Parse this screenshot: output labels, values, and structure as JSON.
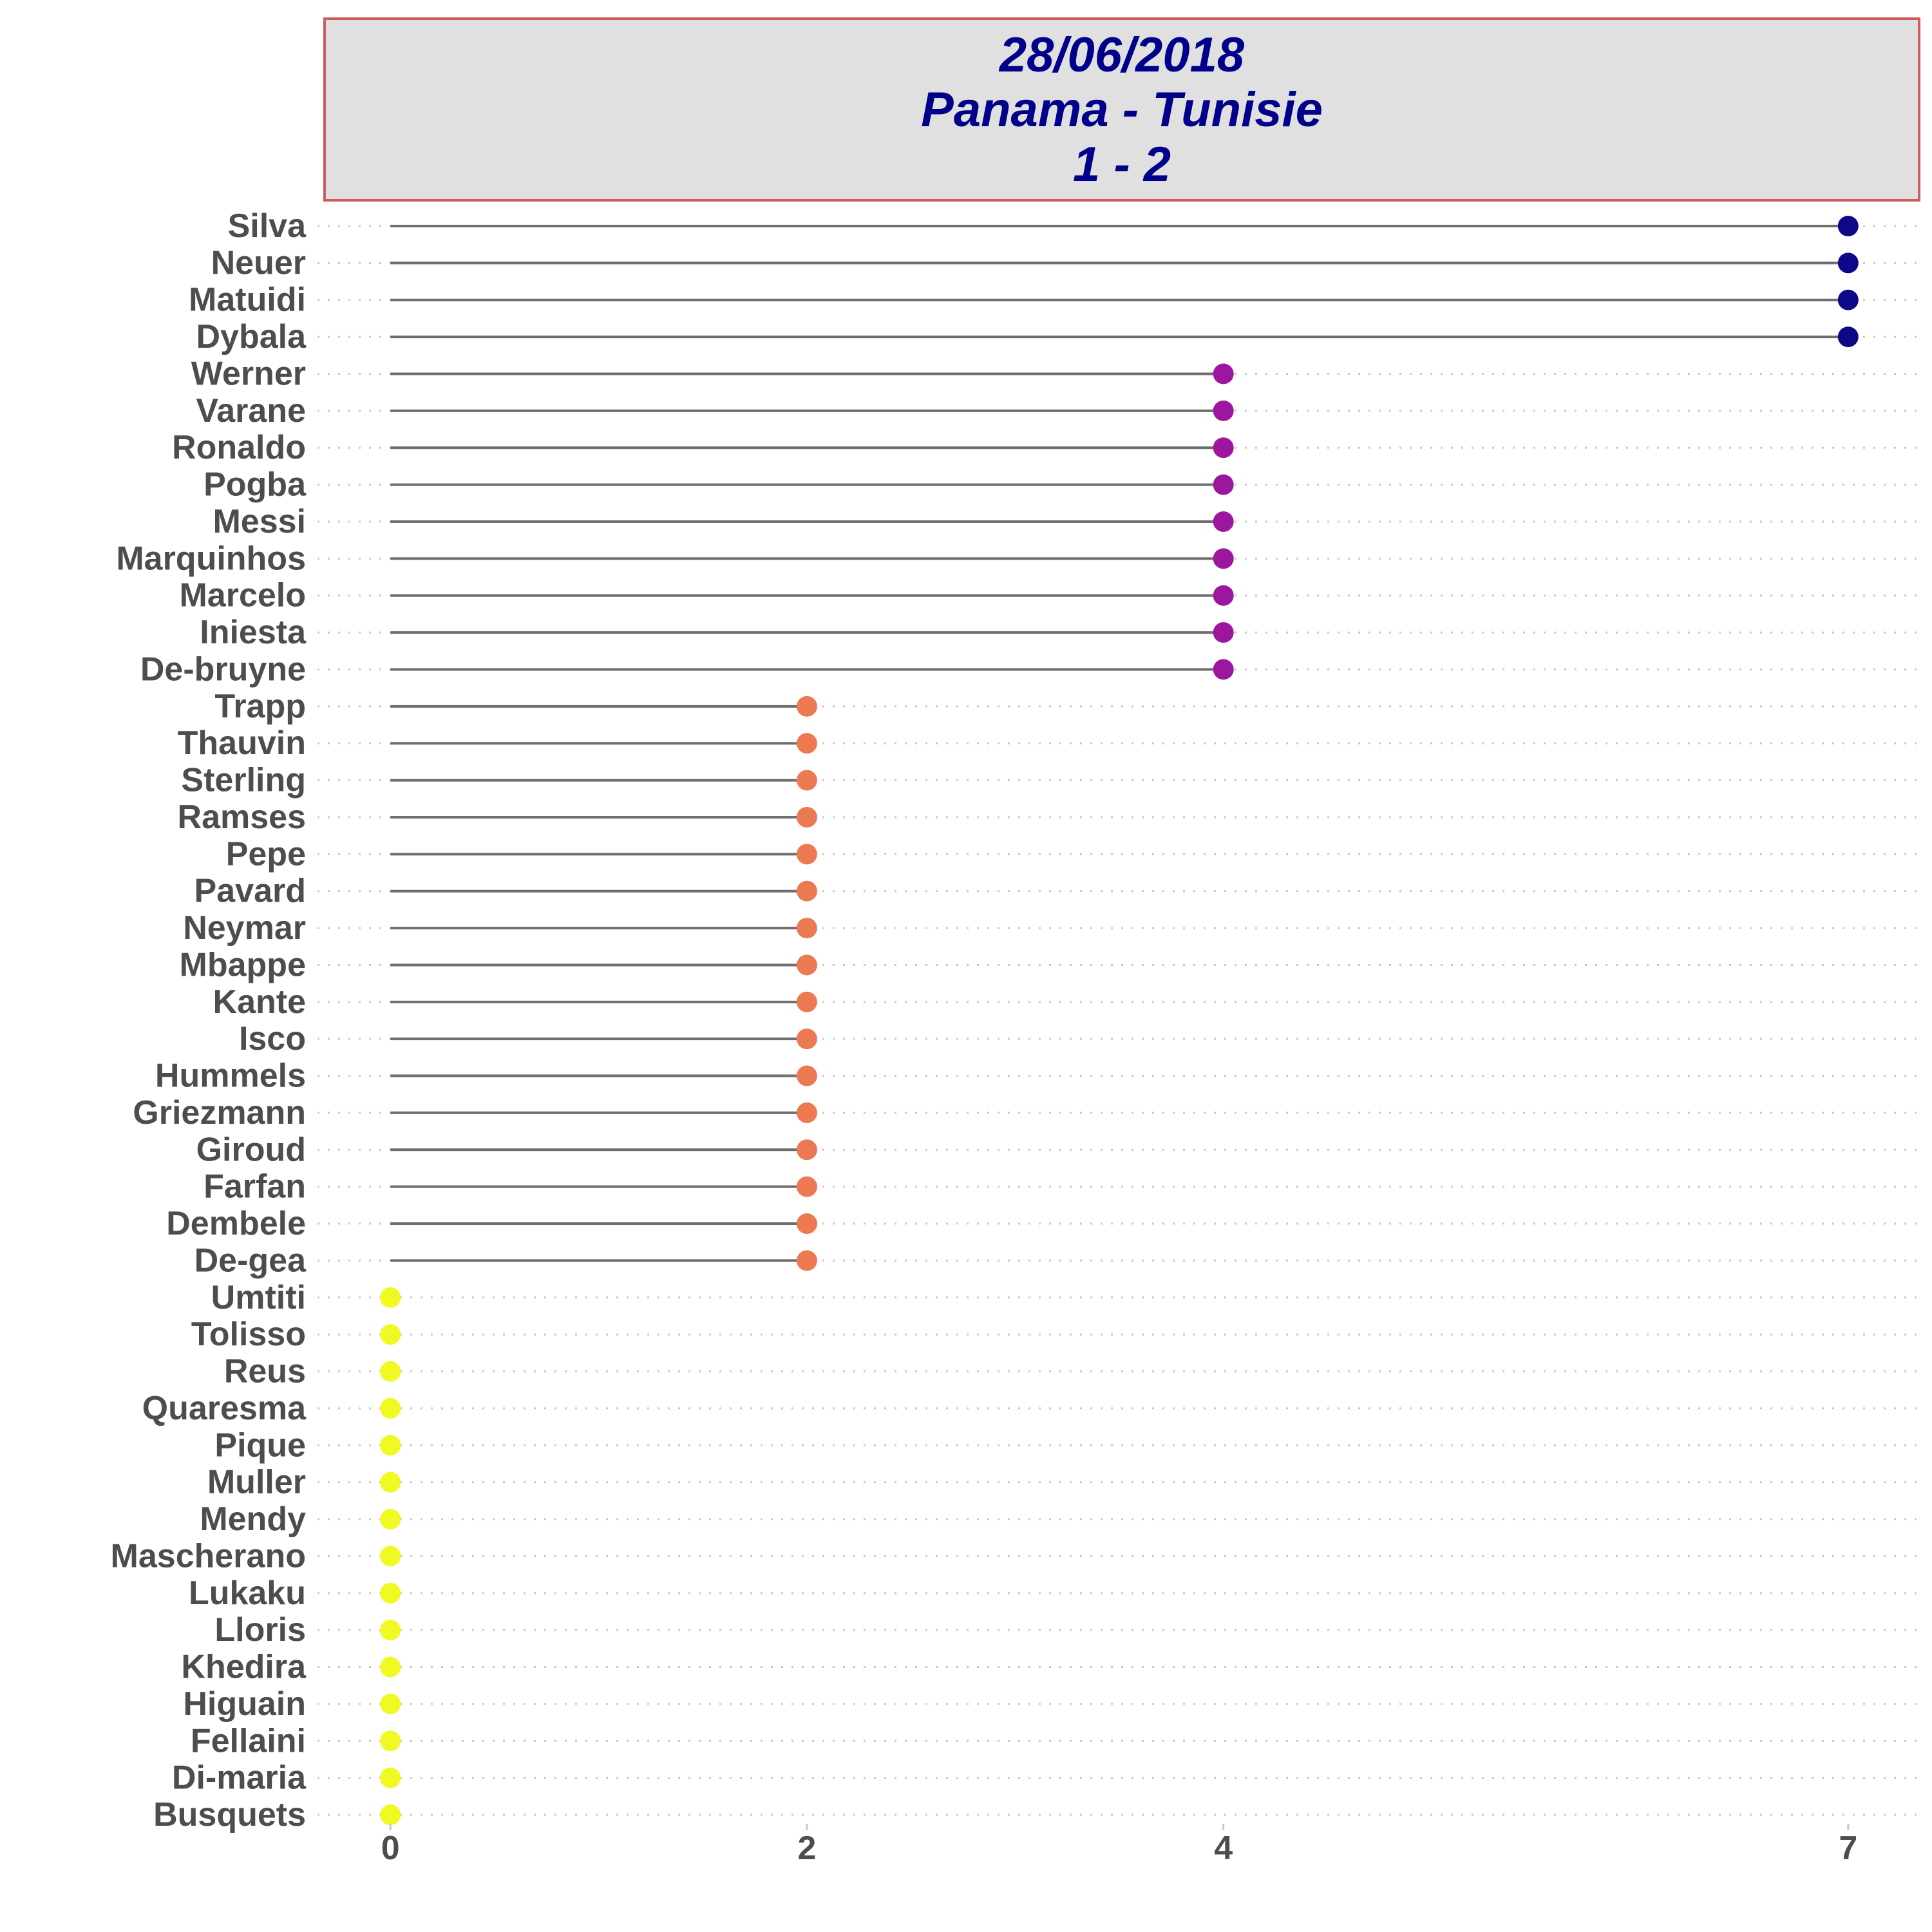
{
  "title": {
    "date": "28/06/2018",
    "match": "Panama - Tunisie",
    "score": "1 - 2"
  },
  "colors": {
    "title_text": "#00008b",
    "title_border": "#cd5c5c",
    "title_fill": "#e0e0e0",
    "segment": "#6e6e6e",
    "gridline": "#c8c8c8",
    "axis_text": "#4d4d4d",
    "value_7": "#0d0887",
    "value_4": "#9c179e",
    "value_2": "#ed7953",
    "value_0": "#f0f921"
  },
  "chart_data": {
    "type": "lollipop",
    "orientation": "horizontal",
    "categories": [
      "Silva",
      "Neuer",
      "Matuidi",
      "Dybala",
      "Werner",
      "Varane",
      "Ronaldo",
      "Pogba",
      "Messi",
      "Marquinhos",
      "Marcelo",
      "Iniesta",
      "De-bruyne",
      "Trapp",
      "Thauvin",
      "Sterling",
      "Ramses",
      "Pepe",
      "Pavard",
      "Neymar",
      "Mbappe",
      "Kante",
      "Isco",
      "Hummels",
      "Griezmann",
      "Giroud",
      "Farfan",
      "Dembele",
      "De-gea",
      "Umtiti",
      "Tolisso",
      "Reus",
      "Quaresma",
      "Pique",
      "Muller",
      "Mendy",
      "Mascherano",
      "Lukaku",
      "Lloris",
      "Khedira",
      "Higuain",
      "Fellaini",
      "Di-maria",
      "Busquets"
    ],
    "values": [
      7,
      7,
      7,
      7,
      4,
      4,
      4,
      4,
      4,
      4,
      4,
      4,
      4,
      2,
      2,
      2,
      2,
      2,
      2,
      2,
      2,
      2,
      2,
      2,
      2,
      2,
      2,
      2,
      2,
      0,
      0,
      0,
      0,
      0,
      0,
      0,
      0,
      0,
      0,
      0,
      0,
      0,
      0,
      0
    ],
    "x_ticks": [
      0,
      2,
      4,
      7
    ],
    "xlim": [
      -0.35,
      7.35
    ],
    "xlabel": "",
    "ylabel": "",
    "grid": "horizontal dotted",
    "legend": "none"
  }
}
